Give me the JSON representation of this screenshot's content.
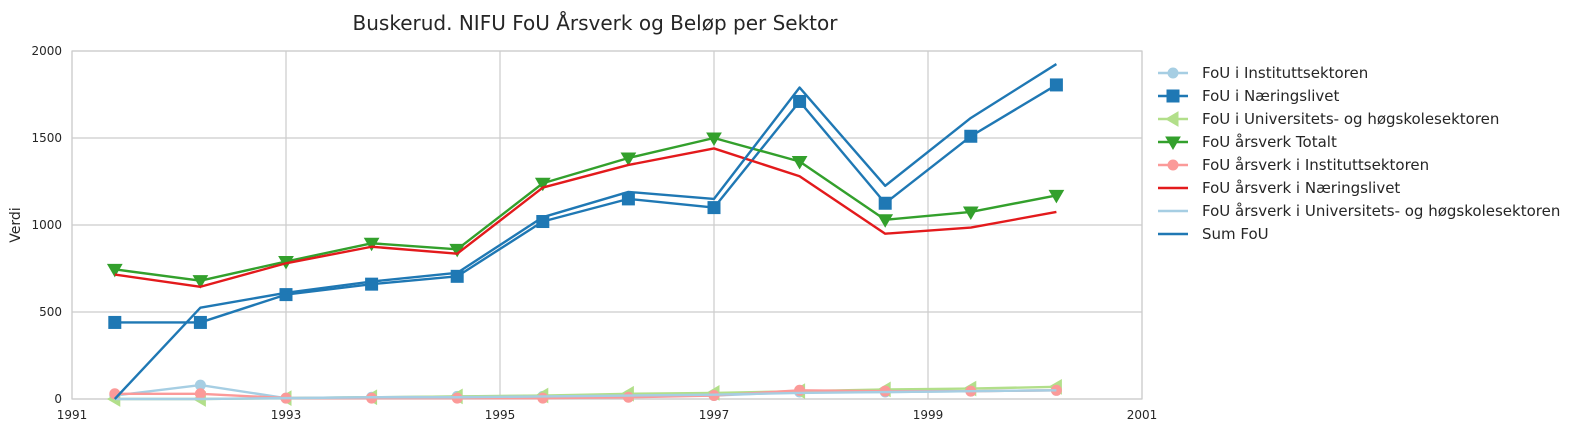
{
  "chart_data": {
    "type": "line",
    "title": "Buskerud. NIFU FoU Årsverk og Beløp per Sektor",
    "xlabel": "",
    "ylabel": "Verdi",
    "xlim": [
      1991,
      2001
    ],
    "ylim": [
      0,
      2000
    ],
    "xticks": [
      "1991",
      "1993",
      "1995",
      "1997",
      "1999",
      "2001"
    ],
    "yticks": [
      "0",
      "500",
      "1000",
      "1500",
      "2000"
    ],
    "grid": true,
    "legend_position": "outside-right",
    "x": [
      1991.4,
      1992.2,
      1993.0,
      1993.8,
      1994.6,
      1995.4,
      1996.2,
      1997.0,
      1997.8,
      1998.6,
      1999.4,
      2000.2
    ],
    "series": [
      {
        "name": "FoU i Instituttsektoren",
        "color": "#a6cee3",
        "marker": "circle",
        "values": [
          20,
          80,
          5,
          10,
          15,
          15,
          20,
          20,
          40,
          40,
          45,
          50
        ]
      },
      {
        "name": "FoU i Næringslivet",
        "color": "#1f78b4",
        "marker": "square",
        "values": [
          440,
          440,
          600,
          660,
          705,
          1020,
          1150,
          1100,
          1710,
          1125,
          1510,
          1805
        ]
      },
      {
        "name": "FoU i Universitets- og høgskolesektoren",
        "color": "#b2df8a",
        "marker": "triangle-left",
        "values": [
          0,
          0,
          5,
          10,
          15,
          20,
          30,
          35,
          45,
          55,
          60,
          70
        ]
      },
      {
        "name": "FoU årsverk Totalt",
        "color": "#33a02c",
        "marker": "triangle-down",
        "values": [
          745,
          680,
          790,
          895,
          860,
          1240,
          1385,
          1500,
          1365,
          1030,
          1075,
          1170
        ]
      },
      {
        "name": "FoU årsverk i Instituttsektoren",
        "color": "#fb9a99",
        "marker": "circle",
        "values": [
          30,
          30,
          5,
          5,
          5,
          5,
          10,
          20,
          50,
          45,
          45,
          50
        ]
      },
      {
        "name": "FoU årsverk i Næringslivet",
        "color": "#e31a1c",
        "marker": "none",
        "values": [
          715,
          645,
          780,
          875,
          835,
          1215,
          1345,
          1440,
          1280,
          950,
          985,
          1075
        ]
      },
      {
        "name": "FoU årsverk i Universitets- og høgskolesektoren",
        "color": "#a6cee3",
        "marker": "none",
        "values": [
          0,
          0,
          5,
          10,
          10,
          15,
          20,
          25,
          35,
          40,
          45,
          50
        ]
      },
      {
        "name": "Sum FoU",
        "color": "#1f78b4",
        "marker": "none",
        "values": [
          0,
          525,
          610,
          675,
          725,
          1045,
          1190,
          1150,
          1790,
          1225,
          1615,
          1925
        ]
      }
    ]
  }
}
